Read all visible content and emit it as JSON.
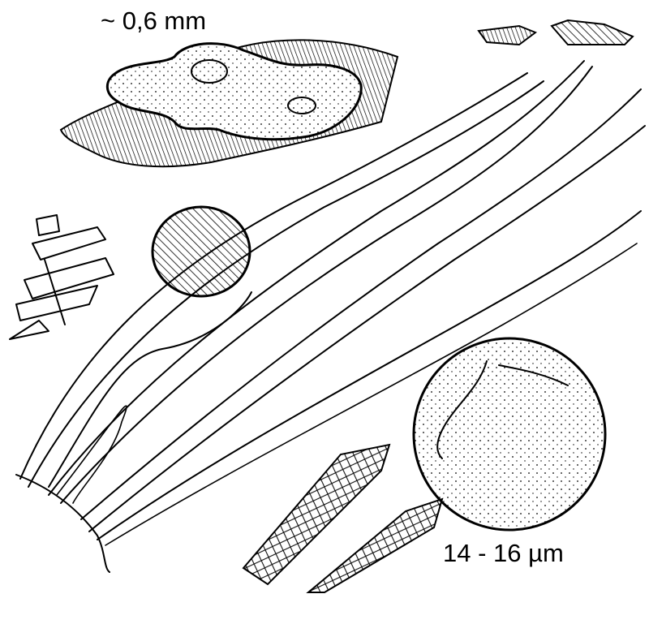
{
  "labels": {
    "top_size": "~ 0,6 mm",
    "bottom_size": "14 - 16 µm"
  },
  "colors": {
    "ink": "#000000",
    "paper": "#ffffff"
  }
}
